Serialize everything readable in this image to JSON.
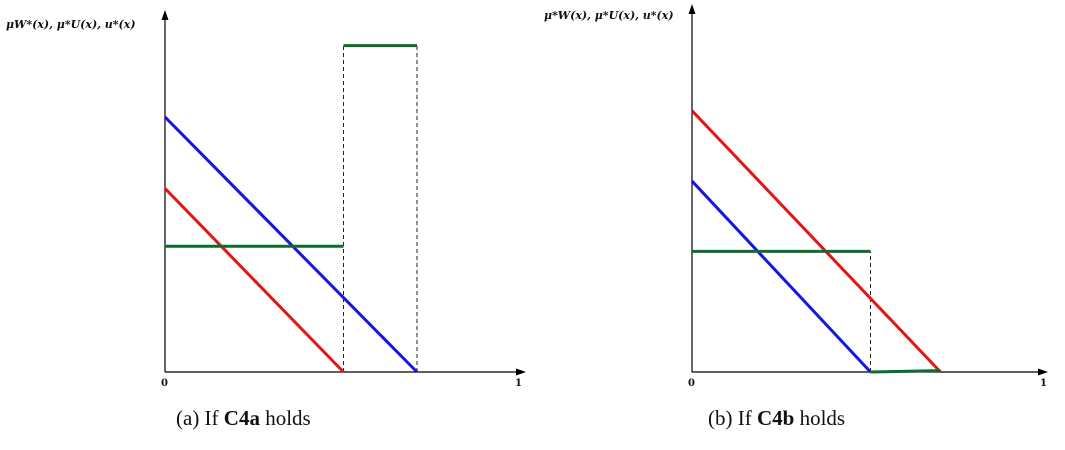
{
  "chart_data": [
    {
      "type": "line",
      "ylabel": "μW*(x), μ*U(x), u*(x)",
      "x_ticks": [
        "0",
        "1"
      ],
      "xlim": [
        0,
        1
      ],
      "ylim": [
        0,
        1
      ],
      "caption": {
        "prefix": "(a) If ",
        "bold": "C4a",
        "suffix": " holds"
      },
      "colors": {
        "blue": "#1515e6",
        "red": "#e61515",
        "green": "#0f6b2f"
      },
      "series": [
        {
          "color": "#1515e6",
          "segments": [
            {
              "x": [
                0,
                0.72
              ],
              "y": [
                0.75,
                0
              ]
            }
          ]
        },
        {
          "color": "#e61515",
          "segments": [
            {
              "x": [
                0,
                0.51
              ],
              "y": [
                0.54,
                0
              ]
            }
          ]
        },
        {
          "color": "#0f6b2f",
          "segments": [
            {
              "x": [
                0,
                0.51
              ],
              "y": [
                0.37,
                0.37
              ]
            },
            {
              "x": [
                0.51,
                0.72
              ],
              "y": [
                0.96,
                0.96
              ]
            }
          ]
        }
      ],
      "dashed_verticals": [
        0.51,
        0.72
      ]
    },
    {
      "type": "line",
      "ylabel": "μ*W(x), μ*U(x), u*(x)",
      "x_ticks": [
        "0",
        "1"
      ],
      "xlim": [
        0,
        1
      ],
      "ylim": [
        0,
        1
      ],
      "caption": {
        "prefix": "(b) If ",
        "bold": "C4b",
        "suffix": " holds"
      },
      "colors": {
        "blue": "#1515e6",
        "red": "#e61515",
        "green": "#0f6b2f"
      },
      "series": [
        {
          "color": "#e61515",
          "segments": [
            {
              "x": [
                0,
                0.71
              ],
              "y": [
                0.78,
                0
              ]
            }
          ]
        },
        {
          "color": "#1515e6",
          "segments": [
            {
              "x": [
                0,
                0.51
              ],
              "y": [
                0.57,
                0
              ]
            }
          ]
        },
        {
          "color": "#0f6b2f",
          "segments": [
            {
              "x": [
                0,
                0.51
              ],
              "y": [
                0.36,
                0.36
              ]
            },
            {
              "x": [
                0.51,
                0.71
              ],
              "y": [
                0,
                0.004
              ]
            }
          ]
        }
      ],
      "dashed_verticals": [
        0.51
      ]
    }
  ]
}
